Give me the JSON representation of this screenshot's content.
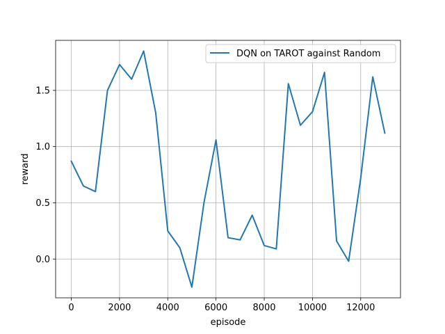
{
  "chart_data": {
    "type": "line",
    "xlabel": "episode",
    "ylabel": "reward",
    "xlim": [
      -650,
      13650
    ],
    "ylim": [
      -0.345,
      1.945
    ],
    "grid": true,
    "legend_position": "top-right",
    "xticks": [
      0,
      2000,
      4000,
      6000,
      8000,
      10000,
      12000
    ],
    "xtick_labels": [
      "0",
      "2000",
      "4000",
      "6000",
      "8000",
      "10000",
      "12000"
    ],
    "yticks": [
      0.0,
      0.5,
      1.0,
      1.5
    ],
    "ytick_labels": [
      "0.0",
      "0.5",
      "1.0",
      "1.5"
    ],
    "series": [
      {
        "name": "DQN on TAROT against Random",
        "color": "#1f77b4",
        "x": [
          0,
          500,
          1000,
          1500,
          2000,
          2500,
          3000,
          3500,
          4000,
          4500,
          5000,
          5500,
          6000,
          6500,
          7000,
          7500,
          8000,
          8500,
          9000,
          9500,
          10000,
          10500,
          11000,
          11500,
          12000,
          12500,
          13000
        ],
        "y": [
          0.87,
          0.65,
          0.6,
          1.5,
          1.73,
          1.6,
          1.85,
          1.3,
          0.25,
          0.1,
          -0.25,
          0.5,
          1.06,
          0.19,
          0.17,
          0.39,
          0.12,
          0.09,
          1.56,
          1.19,
          1.31,
          1.66,
          0.16,
          -0.02,
          0.72,
          1.62,
          1.12
        ]
      }
    ]
  }
}
